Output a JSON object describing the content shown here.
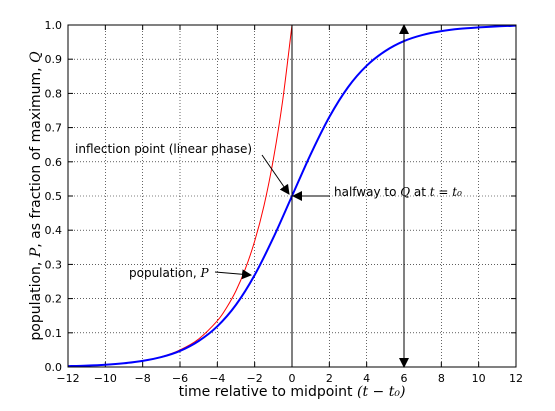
{
  "chart_data": {
    "type": "line",
    "xlabel": "time relative to midpoint (t − t₀)",
    "xlabel_text": "time relative to midpoint ",
    "xlabel_math": "(t − t₀)",
    "ylabel": "population, P, as fraction of maximum, Q",
    "ylabel_parts": [
      "population, ",
      "P",
      ", as fraction of maximum, ",
      "Q"
    ],
    "xlim": [
      -12,
      12
    ],
    "ylim": [
      0,
      1
    ],
    "xticks": [
      -12,
      -10,
      -8,
      -6,
      -4,
      -2,
      0,
      2,
      4,
      6,
      8,
      10,
      12
    ],
    "xtick_labels": [
      "−12",
      "−10",
      "−8",
      "−6",
      "−4",
      "−2",
      "0",
      "2",
      "4",
      "6",
      "8",
      "10",
      "12"
    ],
    "yticks": [
      0.0,
      0.1,
      0.2,
      0.3,
      0.4,
      0.5,
      0.6,
      0.7,
      0.8,
      0.9,
      1.0
    ],
    "ytick_labels": [
      "0.0",
      "0.1",
      "0.2",
      "0.3",
      "0.4",
      "0.5",
      "0.6",
      "0.7",
      "0.8",
      "0.9",
      "1.0"
    ],
    "grid": true,
    "series": [
      {
        "color": "#0000ff",
        "x": [
          -12,
          -11,
          -10,
          -9,
          -8,
          -7,
          -6,
          -5,
          -4,
          -3,
          -2,
          -1,
          0,
          1,
          2,
          3,
          4,
          5,
          6,
          7,
          8,
          9,
          10,
          11,
          12
        ],
        "y": [
          0.0025,
          0.0041,
          0.0067,
          0.011,
          0.018,
          0.029,
          0.047,
          0.076,
          0.119,
          0.182,
          0.269,
          0.378,
          0.5,
          0.622,
          0.731,
          0.818,
          0.881,
          0.924,
          0.953,
          0.971,
          0.982,
          0.989,
          0.993,
          0.996,
          0.998
        ]
      },
      {
        "color": "#ff0000",
        "x": [
          -12,
          -11,
          -10,
          -9,
          -8,
          -7,
          -6,
          -5,
          -4,
          -3.5,
          -3,
          -2.5,
          -2,
          -1.5,
          -1,
          -0.5,
          0
        ],
        "y": [
          0.0025,
          0.0041,
          0.0067,
          0.011,
          0.018,
          0.03,
          0.05,
          0.082,
          0.135,
          0.174,
          0.223,
          0.287,
          0.368,
          0.472,
          0.607,
          0.779,
          1.0
        ]
      }
    ],
    "annotations": {
      "inflection_text": "inflection point (linear phase)",
      "halfway_text": "halfway to ",
      "halfway_math_q": "Q",
      "halfway_at": " at ",
      "halfway_math_t": "t = t₀",
      "population_text": "population, ",
      "population_math": "P"
    },
    "reference_lines": {
      "vertical_at_x": 0,
      "arrow_x": 6,
      "arrow_y_range": [
        0.0,
        1.0
      ]
    }
  }
}
